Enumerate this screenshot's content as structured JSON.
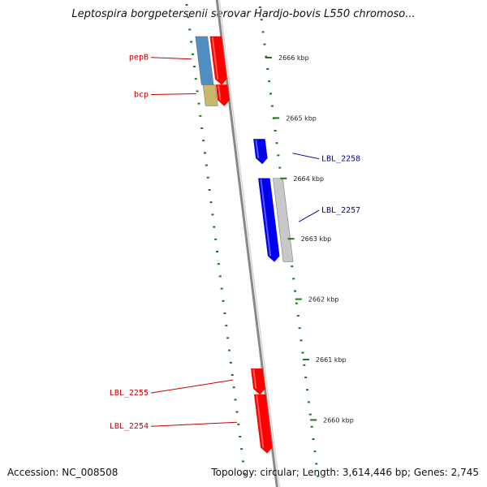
{
  "title": "Leptospira borgpetersenii serovar Hardjo-bovis L550 chromoso...",
  "footer": {
    "accession": "Accession: NC_008508",
    "summary": "Topology: circular; Length: 3,614,446 bp; Genes: 2,745"
  },
  "colors": {
    "forward_gene": "#ff0000",
    "reverse_gene": "#0000ee",
    "pseudo_gene": "#c8c8c8",
    "cog_blue": "#4f8fc2",
    "cog_olive": "#c8b86a",
    "backbone": "#888888",
    "gc_skew": "#1a7a1a",
    "label_forward": "#cc0000",
    "label_reverse": "#0000aa"
  },
  "scale": {
    "unit": "kbp",
    "ticks": [
      {
        "kbp": 2666,
        "label": "2666 kbp"
      },
      {
        "kbp": 2665,
        "label": "2665 kbp"
      },
      {
        "kbp": 2664,
        "label": "2664 kbp"
      },
      {
        "kbp": 2663,
        "label": "2663 kbp"
      },
      {
        "kbp": 2662,
        "label": "2662 kbp"
      },
      {
        "kbp": 2661,
        "label": "2661 kbp"
      },
      {
        "kbp": 2660,
        "label": "2660 kbp"
      }
    ]
  },
  "genes": [
    {
      "name": "pepB",
      "strand": "forward",
      "start_kbp": 2666.35,
      "end_kbp": 2665.55,
      "label_side": "left"
    },
    {
      "name": "bcp",
      "strand": "forward",
      "start_kbp": 2665.55,
      "end_kbp": 2665.2,
      "label_side": "left"
    },
    {
      "name": "LBL_2258",
      "strand": "reverse",
      "start_kbp": 2664.65,
      "end_kbp": 2664.24,
      "label_side": "right"
    },
    {
      "name": "LBL_2257",
      "strand": "reverse",
      "start_kbp": 2664.0,
      "end_kbp": 2662.62,
      "label_side": "right"
    },
    {
      "name": "LBL_2255",
      "strand": "forward",
      "start_kbp": 2660.85,
      "end_kbp": 2660.42,
      "label_side": "left"
    },
    {
      "name": "LBL_2254",
      "strand": "forward",
      "start_kbp": 2660.42,
      "end_kbp": 2659.45,
      "label_side": "left"
    }
  ]
}
